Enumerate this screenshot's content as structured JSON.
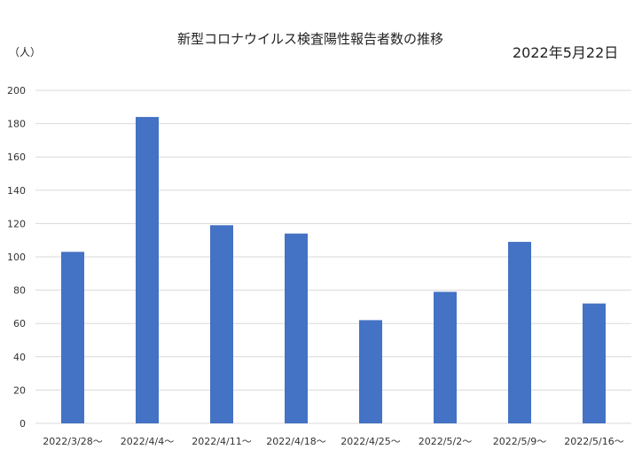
{
  "header": {
    "title": "新型コロナウイルス検査陽性報告者数の推移",
    "date": "2022年5月22日"
  },
  "chart_data": {
    "type": "bar",
    "title": "新型コロナウイルス検査陽性報告者数の推移",
    "ylabel": "（人）",
    "xlabel": "",
    "categories": [
      "2022/3/28～",
      "2022/4/4～",
      "2022/4/11～",
      "2022/4/18～",
      "2022/4/25～",
      "2022/5/2～",
      "2022/5/9～",
      "2022/5/16～"
    ],
    "values": [
      103,
      184,
      119,
      114,
      62,
      79,
      109,
      72
    ],
    "ylim": [
      0,
      200
    ],
    "yticks": [
      0,
      20,
      40,
      60,
      80,
      100,
      120,
      140,
      160,
      180,
      200
    ],
    "grid": true,
    "bar_color": "#4472c4",
    "grid_color": "#d9d9d9"
  }
}
